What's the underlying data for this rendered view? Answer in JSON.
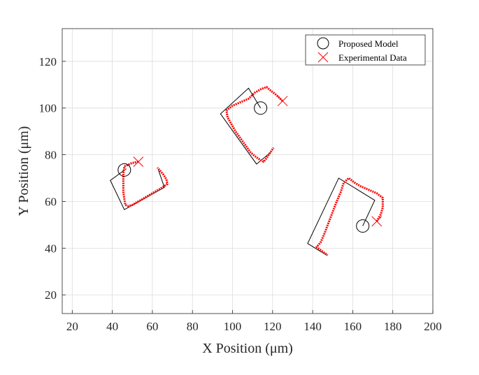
{
  "chart_data": {
    "type": "scatter",
    "xlabel": "X Position (μm)",
    "ylabel": "Y Position (μm)",
    "xlim": [
      15,
      200
    ],
    "ylim": [
      12,
      134
    ],
    "xticks": [
      20,
      40,
      60,
      80,
      100,
      120,
      140,
      160,
      180,
      200
    ],
    "yticks": [
      20,
      40,
      60,
      80,
      100,
      120
    ],
    "grid": true,
    "legend_position": "top-right",
    "colors": {
      "model": "#000000",
      "experimental": "#ff0000"
    },
    "series": [
      {
        "name": "Proposed Model",
        "marker": "circle",
        "points": [
          [
            46,
            73.5
          ],
          [
            114,
            100
          ],
          [
            165,
            49.5
          ]
        ]
      },
      {
        "name": "Experimental Data",
        "marker": "x",
        "points": [
          [
            53,
            77
          ],
          [
            125,
            103
          ],
          [
            172,
            51.5
          ]
        ]
      }
    ],
    "model_paths": [
      [
        [
          47,
          74
        ],
        [
          39,
          69
        ],
        [
          46,
          56.5
        ],
        [
          66,
          66
        ],
        [
          63,
          73.5
        ]
      ],
      [
        [
          114,
          100
        ],
        [
          108,
          108.5
        ],
        [
          94,
          97.5
        ],
        [
          112,
          76
        ],
        [
          119,
          81
        ]
      ],
      [
        [
          165,
          49.5
        ],
        [
          171,
          60.5
        ],
        [
          153,
          70
        ],
        [
          137.5,
          42
        ],
        [
          147,
          37
        ]
      ]
    ],
    "experimental_paths": [
      [
        [
          53,
          77
        ],
        [
          50,
          76.5
        ],
        [
          46,
          75
        ],
        [
          45.5,
          72
        ],
        [
          45.5,
          68
        ],
        [
          45.5,
          64
        ],
        [
          46,
          61
        ],
        [
          46.5,
          58.5
        ],
        [
          48,
          58
        ],
        [
          50,
          58.5
        ],
        [
          53,
          60
        ],
        [
          56,
          61.5
        ],
        [
          59,
          63
        ],
        [
          62,
          64.5
        ],
        [
          65,
          66
        ],
        [
          67.5,
          67.5
        ],
        [
          67,
          69.5
        ],
        [
          65.5,
          71.5
        ],
        [
          64,
          73
        ],
        [
          62.5,
          74.5
        ]
      ],
      [
        [
          125,
          103
        ],
        [
          122,
          105.5
        ],
        [
          119,
          107.5
        ],
        [
          117,
          109
        ],
        [
          114,
          108
        ],
        [
          111,
          106.5
        ],
        [
          108,
          104
        ],
        [
          104,
          102.5
        ],
        [
          100,
          101
        ],
        [
          97,
          99
        ],
        [
          97.5,
          96
        ],
        [
          99.5,
          93
        ],
        [
          101.5,
          90
        ],
        [
          104,
          87
        ],
        [
          106.5,
          84
        ],
        [
          109,
          81
        ],
        [
          111,
          79.5
        ],
        [
          113.5,
          78
        ],
        [
          115.5,
          77
        ],
        [
          116.5,
          78
        ],
        [
          118.5,
          80.5
        ],
        [
          120.5,
          83
        ]
      ],
      [
        [
          172,
          51.5
        ],
        [
          174,
          54.5
        ],
        [
          175,
          57.5
        ],
        [
          175,
          61.5
        ],
        [
          172,
          63.5
        ],
        [
          168,
          65
        ],
        [
          164,
          66.5
        ],
        [
          161,
          68
        ],
        [
          158,
          70
        ],
        [
          155.5,
          68
        ],
        [
          154,
          64
        ],
        [
          152,
          60
        ],
        [
          150,
          55.5
        ],
        [
          148,
          51
        ],
        [
          146,
          46.5
        ],
        [
          144,
          42.5
        ],
        [
          142,
          40.5
        ],
        [
          145,
          38.5
        ],
        [
          147.5,
          37
        ]
      ]
    ]
  }
}
